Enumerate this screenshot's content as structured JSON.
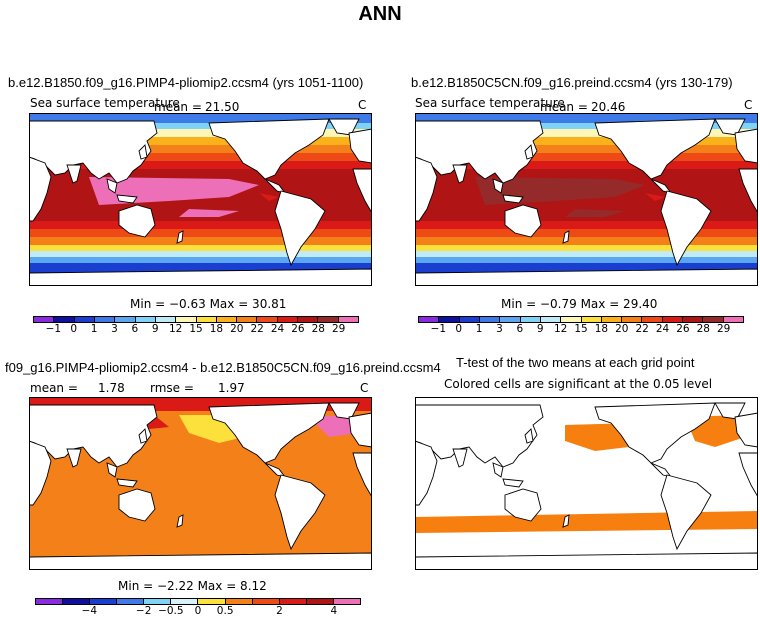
{
  "title": "ANN",
  "panels": {
    "p1": {
      "title": "b.e12.B1850.f09_g16.PIMP4-pliomip2.ccsm4 (yrs 1051-1100)",
      "variable": "Sea surface temperature",
      "mean_label": "mean =",
      "mean": "21.50",
      "units": "C",
      "minmax": "Min =  −0.63  Max =  30.81"
    },
    "p2": {
      "title": "b.e12.B1850C5CN.f09_g16.preind.ccsm4 (yrs 130-179)",
      "variable": "Sea surface temperature",
      "mean_label": "mean =",
      "mean": "20.46",
      "units": "C",
      "minmax": "Min =  −0.79  Max =  29.40"
    },
    "p3": {
      "title": "f09_g16.PIMP4-pliomip2.ccsm4 - b.e12.B1850C5CN.f09_g16.preind.ccsm4",
      "mean_label": "mean =",
      "mean": "1.78",
      "rmse_label": "rmse =",
      "rmse": "1.97",
      "units": "C",
      "minmax": "Min =  −2.22  Max =    8.12"
    },
    "p4": {
      "title": "T-test of the two means at each grid point",
      "subtitle": "Colored cells are significant at the 0.05 level"
    }
  },
  "sst_colorbar": {
    "labels": [
      "−1",
      "0",
      "1",
      "3",
      "6",
      "9",
      "12",
      "15",
      "18",
      "20",
      "22",
      "24",
      "26",
      "28",
      "29"
    ],
    "colors": [
      "#8a2be2",
      "#1010a0",
      "#1a3fd0",
      "#3f7be8",
      "#5aa6f0",
      "#7ed3f7",
      "#bfeaf8",
      "#fcf6b8",
      "#fce03c",
      "#f9b21c",
      "#f4801a",
      "#ee4a16",
      "#da1a16",
      "#b01414",
      "#952a2a",
      "#ec6fb8"
    ]
  },
  "diff_colorbar": {
    "labels": [
      "−4",
      "−2",
      "−0.5",
      "0",
      "0.5",
      "2",
      "4"
    ],
    "colors": [
      "#8a2be2",
      "#1010a0",
      "#1a3fd0",
      "#3f7be8",
      "#7ed3f7",
      "#d8f2fc",
      "#fce03c",
      "#f4801a",
      "#ee4a16",
      "#da1a16",
      "#b01414",
      "#ec6fb8"
    ]
  },
  "ttest_color": "#f77f10",
  "ocean_fill_p3": "#f4801a",
  "land_color": "#ffffff",
  "coast_color": "#000000"
}
